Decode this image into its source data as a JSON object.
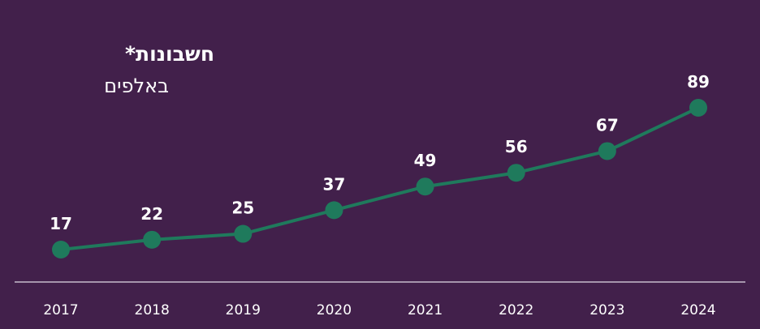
{
  "chart_data": {
    "type": "line",
    "title": "חשבונות*",
    "subtitle": "באלפים",
    "x": [
      "2017",
      "2018",
      "2019",
      "2020",
      "2021",
      "2022",
      "2023",
      "2024"
    ],
    "series": [
      {
        "values": [
          17,
          22,
          25,
          37,
          49,
          56,
          67,
          89
        ]
      }
    ],
    "grid": false,
    "data_labels": true
  },
  "colors": {
    "background": "#42204b",
    "line": "#1f7a5c",
    "text": "#ffffff",
    "axis": "#c8bccd"
  }
}
